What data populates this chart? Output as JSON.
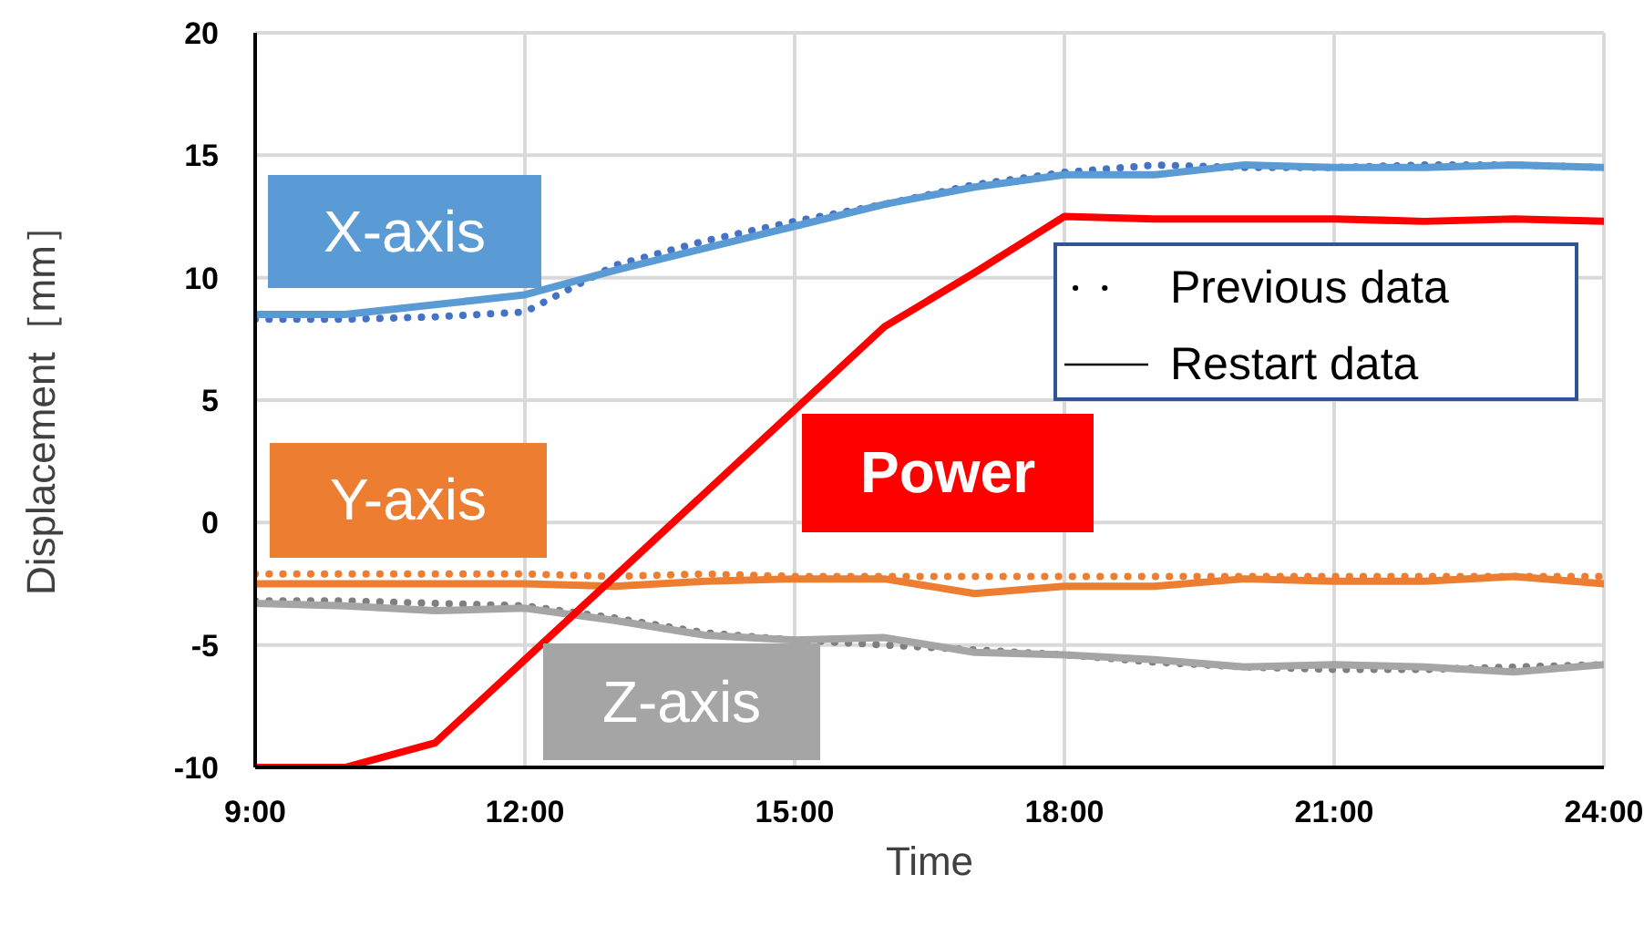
{
  "chart_data": {
    "type": "line",
    "xlabel": "Time",
    "ylabel": "Displacement［mm］",
    "x": [
      9,
      10,
      11,
      12,
      13,
      14,
      15,
      16,
      17,
      18,
      19,
      20,
      21,
      22,
      23,
      24
    ],
    "xlim": [
      9,
      24
    ],
    "xticks": [
      {
        "value": 9,
        "label": "9:00"
      },
      {
        "value": 12,
        "label": "12:00"
      },
      {
        "value": 15,
        "label": "15:00"
      },
      {
        "value": 18,
        "label": "18:00"
      },
      {
        "value": 21,
        "label": "21:00"
      },
      {
        "value": 24,
        "label": "24:00"
      }
    ],
    "ylim": [
      -10,
      20
    ],
    "yticks": [
      -10,
      -5,
      0,
      5,
      10,
      15,
      20
    ],
    "grid": true,
    "marker": "none",
    "annotations": [
      "Previous data",
      "Restart data"
    ],
    "series": [
      {
        "color": "#4472c4",
        "line_style": "dotted",
        "values": [
          8.3,
          8.3,
          8.4,
          8.6,
          10.5,
          11.5,
          12.3,
          13.0,
          13.8,
          14.3,
          14.6,
          14.5,
          14.5,
          14.6,
          14.6,
          14.5
        ]
      },
      {
        "name": "X-axis",
        "color": "#5b9bd5",
        "line_style": "solid",
        "values": [
          8.5,
          8.5,
          8.9,
          9.3,
          10.3,
          11.2,
          12.1,
          13.0,
          13.7,
          14.2,
          14.2,
          14.6,
          14.5,
          14.5,
          14.6,
          14.5
        ]
      },
      {
        "color": "#ed7d31",
        "line_style": "dotted",
        "values": [
          -2.1,
          -2.1,
          -2.1,
          -2.1,
          -2.2,
          -2.1,
          -2.2,
          -2.2,
          -2.2,
          -2.2,
          -2.2,
          -2.2,
          -2.2,
          -2.2,
          -2.2,
          -2.2
        ]
      },
      {
        "name": "Y-axis",
        "color": "#ed7d31",
        "line_style": "solid",
        "values": [
          -2.5,
          -2.5,
          -2.5,
          -2.5,
          -2.6,
          -2.4,
          -2.3,
          -2.3,
          -2.9,
          -2.6,
          -2.6,
          -2.3,
          -2.4,
          -2.4,
          -2.2,
          -2.5
        ]
      },
      {
        "color": "#7f7f7f",
        "line_style": "dotted",
        "values": [
          -3.2,
          -3.2,
          -3.3,
          -3.4,
          -3.9,
          -4.5,
          -4.8,
          -5.0,
          -5.2,
          -5.4,
          -5.7,
          -5.9,
          -6.0,
          -6.0,
          -5.9,
          -5.8
        ]
      },
      {
        "name": "Z-axis",
        "color": "#a5a5a5",
        "line_style": "solid",
        "values": [
          -3.3,
          -3.4,
          -3.6,
          -3.5,
          -4.0,
          -4.6,
          -4.8,
          -4.7,
          -5.3,
          -5.4,
          -5.6,
          -5.9,
          -5.8,
          -5.9,
          -6.1,
          -5.8
        ]
      },
      {
        "name": "Power",
        "color": "#ff0000",
        "line_style": "solid",
        "values": [
          -10,
          -10,
          -9,
          -5.6,
          -2.2,
          1.2,
          4.6,
          8.0,
          10.2,
          12.5,
          12.4,
          12.4,
          12.4,
          12.3,
          12.4,
          12.3
        ]
      }
    ]
  }
}
